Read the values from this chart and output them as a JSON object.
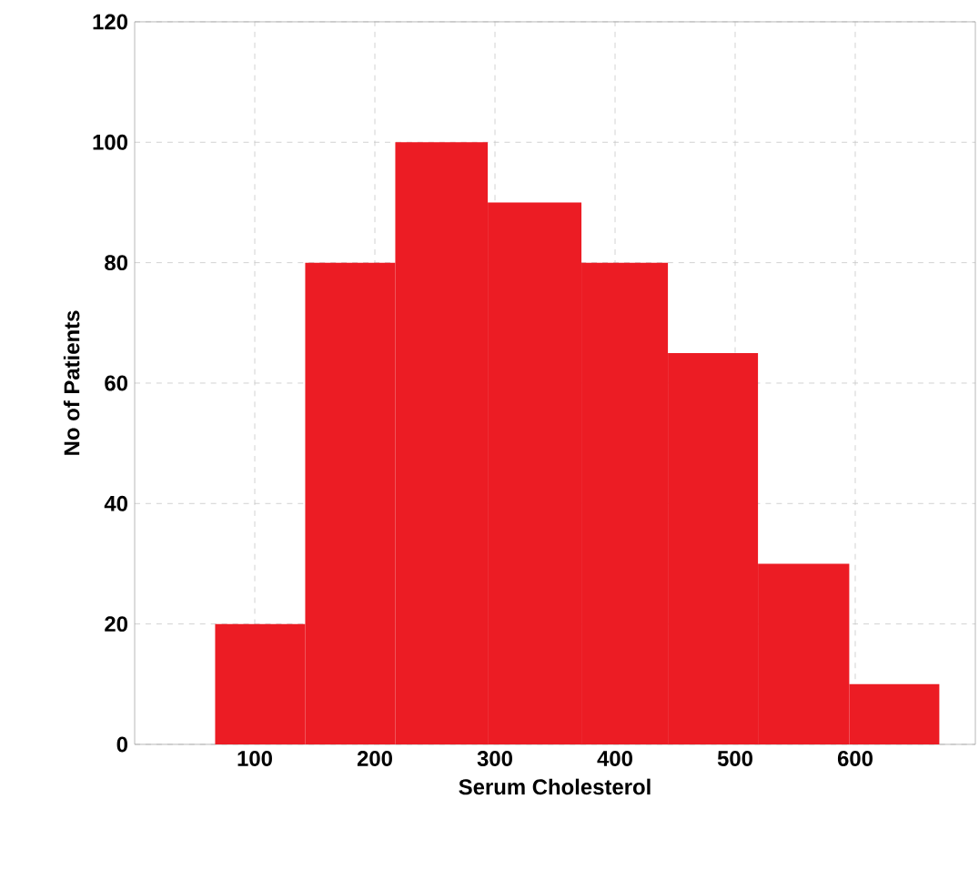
{
  "chart_data": {
    "type": "histogram",
    "xlabel": "Serum Cholesterol",
    "ylabel": "No of Patients",
    "bins": [
      67,
      142,
      217,
      294,
      372,
      444,
      519,
      595,
      670
    ],
    "values": [
      20,
      80,
      100,
      90,
      80,
      65,
      30,
      10
    ],
    "color": "#ec1c24",
    "xlim": [
      0,
      700
    ],
    "xticks": [
      100,
      200,
      300,
      400,
      500,
      600
    ],
    "ylim": [
      0,
      120
    ],
    "yticks": [
      0,
      20,
      40,
      60,
      80,
      100,
      120
    ],
    "grid": true
  }
}
